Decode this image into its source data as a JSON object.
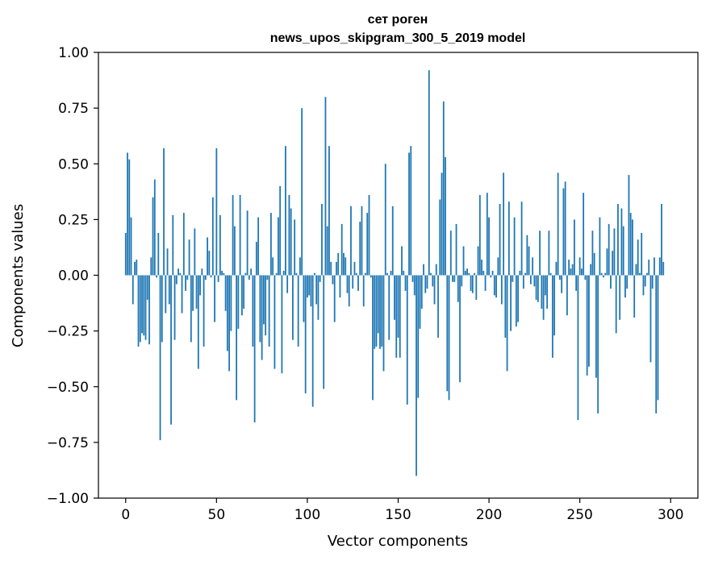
{
  "chart_data": {
    "type": "bar",
    "title": "сет роген",
    "subtitle": "news_upos_skipgram_300_5_2019 model",
    "xlabel": "Vector components",
    "ylabel": "Components values",
    "xlim": [
      -15,
      315
    ],
    "ylim": [
      -1.0,
      1.0
    ],
    "xticks": [
      0,
      50,
      100,
      150,
      200,
      250,
      300
    ],
    "xtick_labels": [
      "0",
      "50",
      "100",
      "150",
      "200",
      "250",
      "300"
    ],
    "yticks": [
      1.0,
      0.75,
      0.5,
      0.25,
      0.0,
      -0.25,
      -0.5,
      -0.75,
      -1.0
    ],
    "ytick_labels": [
      "1.00",
      "0.75",
      "0.50",
      "0.25",
      "0.00",
      "−0.25",
      "−0.50",
      "−0.75",
      "−1.00"
    ],
    "grid": false,
    "bar_color": "#1f77b4",
    "series": [
      {
        "values": [
          0.19,
          0.55,
          0.52,
          0.26,
          -0.13,
          0.06,
          0.07,
          -0.32,
          -0.3,
          -0.26,
          -0.27,
          -0.29,
          -0.11,
          -0.31,
          0.08,
          0.35,
          0.43,
          -0.01,
          0.19,
          -0.74,
          -0.3,
          0.57,
          -0.17,
          0.12,
          -0.13,
          -0.67,
          0.27,
          -0.29,
          -0.04,
          0.03,
          0.01,
          -0.17,
          0.28,
          -0.07,
          -0.02,
          0.16,
          -0.3,
          -0.16,
          0.21,
          -0.15,
          -0.42,
          -0.09,
          0.03,
          -0.32,
          -0.02,
          0.17,
          0.11,
          -0.01,
          0.35,
          -0.21,
          0.57,
          -0.03,
          0.27,
          0.02,
          0.01,
          -0.16,
          -0.34,
          -0.43,
          -0.25,
          0.36,
          0.22,
          -0.56,
          -0.24,
          0.36,
          -0.18,
          -0.15,
          0.01,
          0.29,
          -0.02,
          0.03,
          -0.32,
          -0.66,
          0.15,
          0.26,
          -0.3,
          -0.38,
          -0.22,
          -0.27,
          -0.02,
          -0.32,
          0.28,
          0.08,
          -0.42,
          0.01,
          0.26,
          0.4,
          -0.44,
          0.02,
          0.58,
          -0.08,
          0.36,
          0.3,
          -0.29,
          0.25,
          0.01,
          -0.32,
          0.08,
          0.75,
          -0.21,
          -0.53,
          -0.1,
          -0.09,
          -0.14,
          -0.59,
          0.01,
          -0.13,
          -0.2,
          -0.03,
          0.32,
          -0.51,
          0.8,
          0.22,
          0.58,
          0.06,
          -0.04,
          -0.21,
          0.06,
          0.1,
          -0.1,
          0.23,
          0.1,
          0.08,
          -0.08,
          -0.14,
          0.31,
          -0.06,
          0.06,
          0.01,
          -0.07,
          0.24,
          0.31,
          -0.14,
          0.01,
          0.28,
          0.36,
          -0.01,
          -0.56,
          -0.33,
          -0.32,
          -0.26,
          -0.33,
          -0.32,
          -0.43,
          0.5,
          0.01,
          -0.29,
          0.02,
          0.31,
          -0.2,
          -0.37,
          -0.28,
          -0.37,
          0.13,
          0.02,
          -0.07,
          -0.58,
          0.55,
          0.58,
          -0.03,
          -0.09,
          -0.9,
          -0.55,
          -0.24,
          -0.15,
          0.05,
          -0.08,
          -0.06,
          0.92,
          0.01,
          -0.05,
          -0.13,
          0.05,
          -0.28,
          0.34,
          0.46,
          0.78,
          0.53,
          -0.52,
          -0.56,
          0.2,
          -0.03,
          -0.03,
          0.23,
          -0.12,
          -0.48,
          -0.05,
          0.13,
          0.02,
          0.03,
          0.01,
          -0.07,
          -0.08,
          0.01,
          -0.11,
          0.13,
          0.36,
          0.07,
          0.02,
          -0.07,
          0.37,
          0.26,
          -0.01,
          0.02,
          -0.09,
          -0.1,
          0.08,
          0.32,
          -0.13,
          0.46,
          -0.28,
          -0.43,
          0.33,
          -0.25,
          -0.03,
          0.26,
          -0.23,
          -0.21,
          0.02,
          0.33,
          -0.06,
          0.01,
          0.18,
          0.13,
          -0.04,
          0.08,
          -0.05,
          -0.11,
          -0.12,
          0.2,
          -0.15,
          -0.2,
          -0.09,
          -0.15,
          0.2,
          0.01,
          -0.37,
          -0.27,
          0.06,
          0.46,
          -0.02,
          -0.08,
          0.39,
          0.42,
          -0.18,
          0.07,
          0.03,
          0.05,
          0.25,
          -0.07,
          -0.65,
          0.08,
          0.03,
          0.37,
          -0.02,
          -0.45,
          -0.41,
          0.05,
          0.2,
          0.1,
          -0.46,
          -0.62,
          0.26,
          0.01,
          -0.01,
          0.01,
          0.12,
          0.23,
          -0.06,
          0.11,
          0.21,
          -0.26,
          0.32,
          -0.2,
          0.3,
          0.22,
          -0.1,
          -0.06,
          0.45,
          0.28,
          0.25,
          -0.19,
          0.05,
          0.16,
          0.01,
          0.19,
          -0.09,
          -0.05,
          0.01,
          0.07,
          -0.39,
          -0.06,
          0.08,
          -0.62,
          -0.56,
          0.08,
          0.32,
          0.06
        ]
      }
    ]
  }
}
